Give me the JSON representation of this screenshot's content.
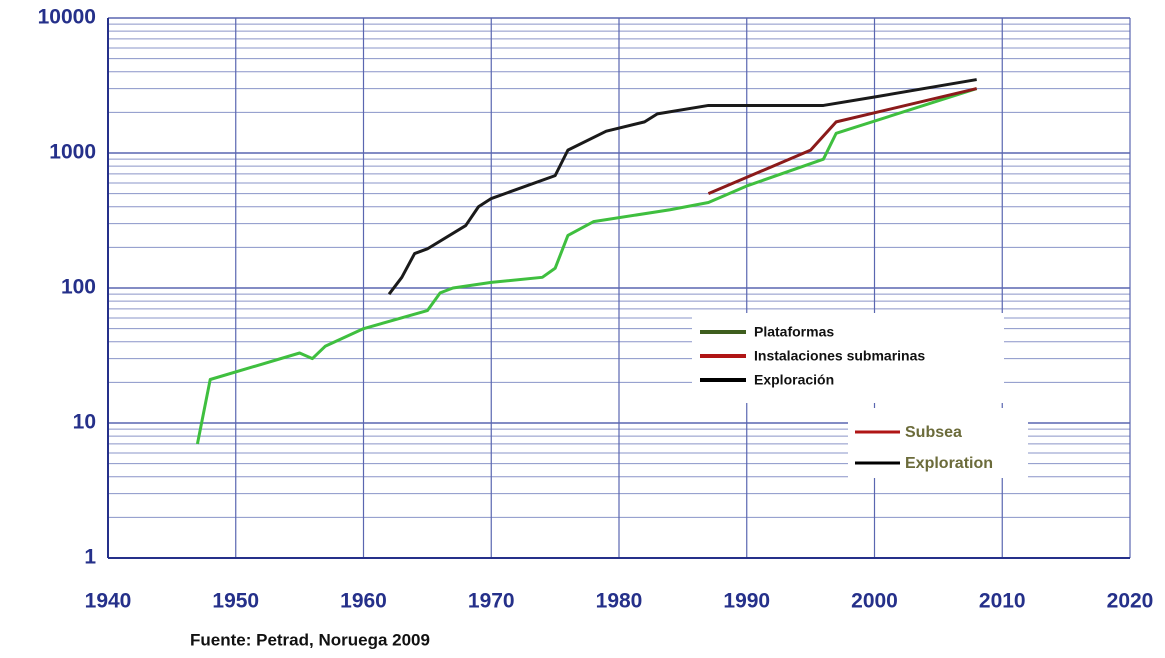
{
  "chart_data": {
    "type": "line",
    "log_y": true,
    "grid": true,
    "xlim": [
      1940,
      2020
    ],
    "xticks": [
      1940,
      1950,
      1960,
      1970,
      1980,
      1990,
      2000,
      2010,
      2020
    ],
    "ylim": [
      1,
      10000
    ],
    "yticks": [
      1,
      10,
      100,
      1000,
      10000
    ],
    "series": [
      {
        "name": "Plataformas",
        "color": "#3fbf3f",
        "legend_color": "#3e5e1e",
        "x": [
          1947,
          1948,
          1955,
          1956,
          1957,
          1960,
          1965,
          1966,
          1967,
          1970,
          1974,
          1975,
          1976,
          1978,
          1984,
          1987,
          1990,
          1996,
          1997,
          2008
        ],
        "values": [
          7,
          21,
          33,
          30,
          37,
          50,
          68,
          92,
          100,
          110,
          120,
          140,
          245,
          310,
          380,
          430,
          570,
          900,
          1400,
          3000
        ]
      },
      {
        "name": "Instalaciones submarinas",
        "color": "#8b1a1a",
        "legend_color": "#b01515",
        "x": [
          1987,
          1995,
          1997,
          2008
        ],
        "values": [
          500,
          1050,
          1700,
          3000
        ]
      },
      {
        "name": "Exploración",
        "color": "#1a1a1a",
        "legend_color": "#000000",
        "x": [
          1962,
          1963,
          1964,
          1965,
          1968,
          1969,
          1970,
          1975,
          1976,
          1979,
          1982,
          1983,
          1987,
          1996,
          2000,
          2008
        ],
        "values": [
          90,
          120,
          180,
          195,
          290,
          400,
          460,
          680,
          1050,
          1450,
          1700,
          1950,
          2250,
          2250,
          2600,
          3500
        ]
      }
    ],
    "background_legend": [
      "Subsea",
      "Exploration"
    ],
    "source": "Fuente: Petrad, Noruega 2009"
  }
}
